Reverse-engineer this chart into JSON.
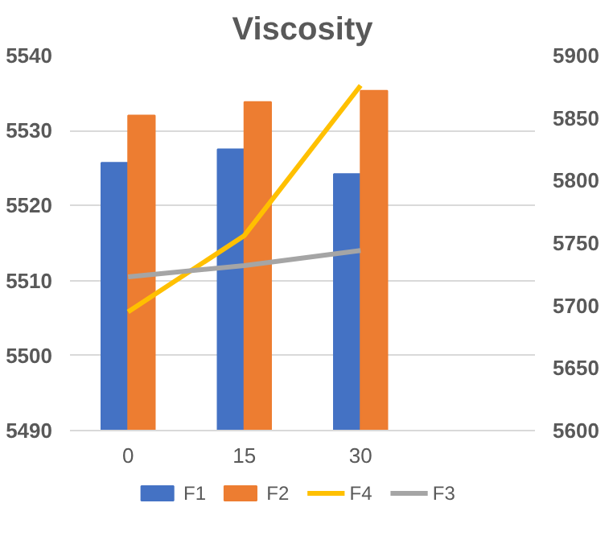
{
  "chart_data": {
    "type": "bar",
    "title": "Viscosity",
    "categories": [
      "0",
      "15",
      "30",
      null
    ],
    "series": [
      {
        "name": "F1",
        "color": "#4472c4",
        "values": [
          5525.7,
          5527.5,
          5524.2,
          null
        ]
      },
      {
        "name": "F2",
        "color": "#ed7d31",
        "values": [
          5532.0,
          5533.8,
          5535.3,
          null
        ]
      },
      {
        "name": "F4",
        "color": "#ffc000",
        "type": "line",
        "axis": "y2",
        "values": [
          5695,
          5756,
          5876,
          null
        ]
      },
      {
        "name": "F3",
        "color": "#a5a5a5",
        "type": "line",
        "axis": "y2",
        "values": [
          5723,
          5732,
          5744,
          null
        ]
      }
    ],
    "ylim": [
      5490,
      5540
    ],
    "yticks": [
      5490,
      5500,
      5510,
      5520,
      5530,
      5540
    ],
    "y2lim": [
      5600,
      5900
    ],
    "y2ticks": [
      5600,
      5650,
      5700,
      5750,
      5800,
      5850,
      5900
    ],
    "grid": "y",
    "legend": "bottom",
    "marker": "none",
    "line_style": "solid"
  }
}
